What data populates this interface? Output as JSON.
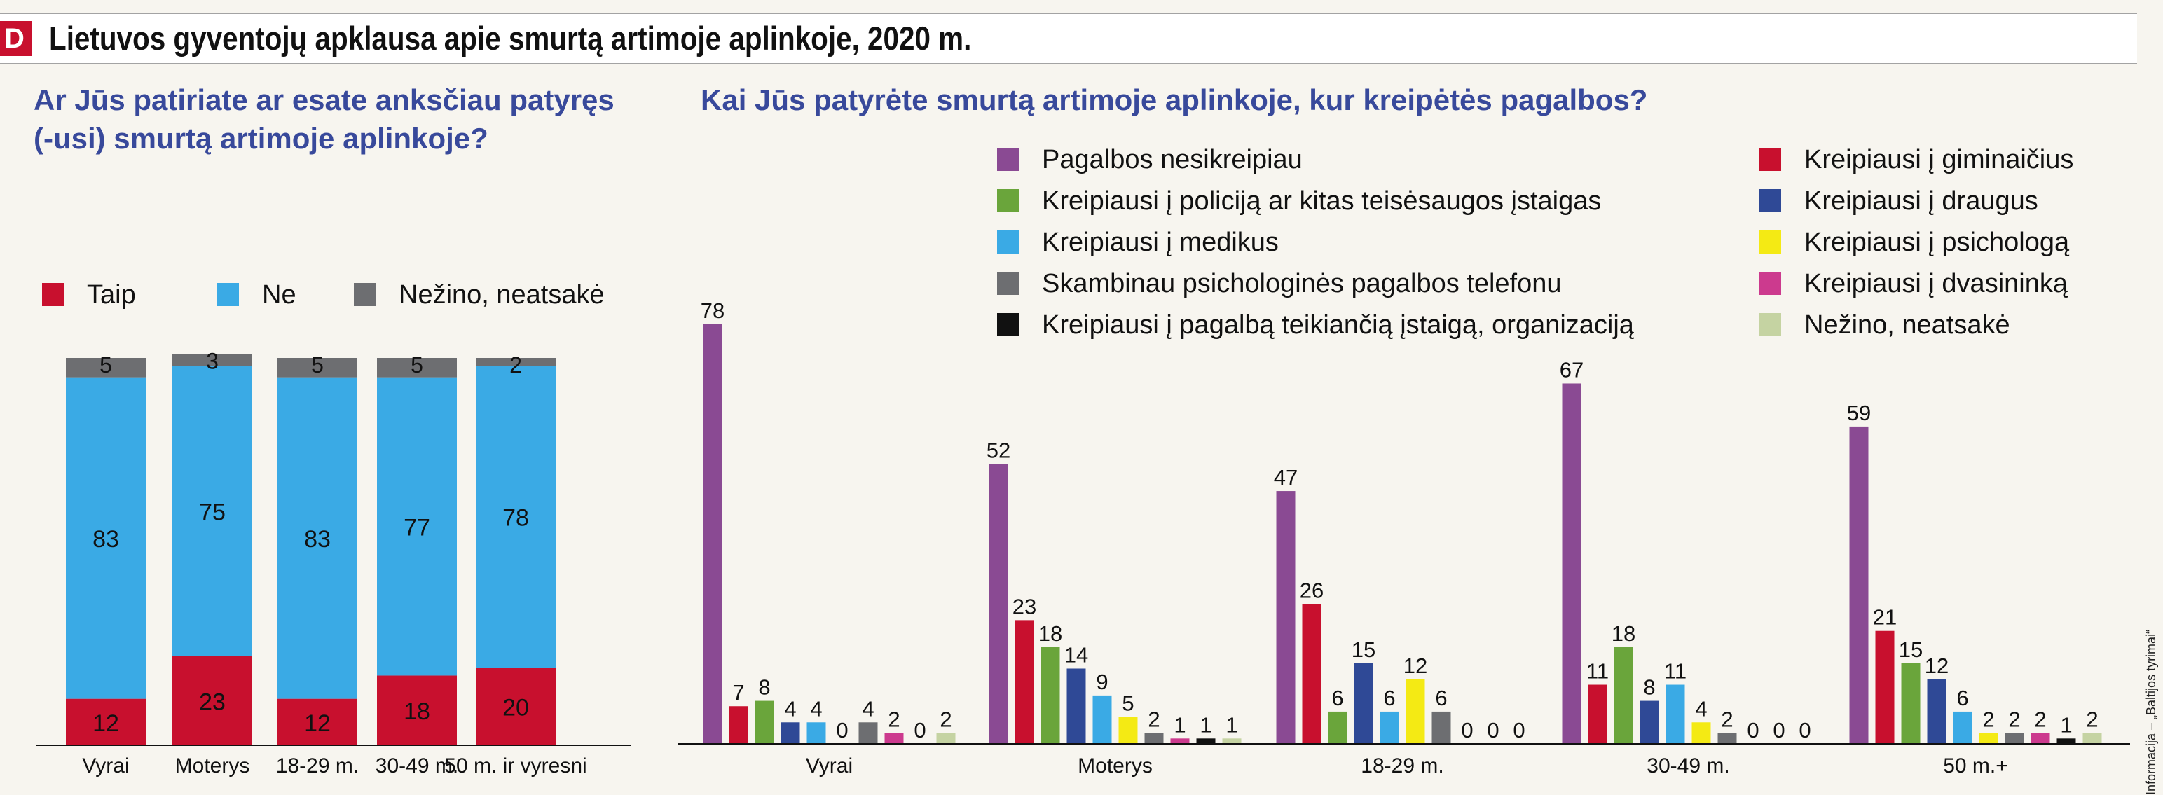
{
  "header": {
    "logo_letter": "D",
    "title": "Lietuvos gyventojų apklausa apie smurtą artimoje aplinkoje, 2020 m."
  },
  "source": "Informacija – „Baltijos tyrimai“",
  "colors": {
    "accent": "#c8102e",
    "title_blue": "#38499b"
  },
  "chart_data": [
    {
      "type": "bar",
      "stacked": true,
      "question": "Ar Jūs patiriate ar esate anksčiau patyręs (-usi) smurtą artimoje aplinkoje?",
      "categories": [
        "Vyrai",
        "Moterys",
        "18-29 m.",
        "30-49 m.",
        "50 m. ir vyresni"
      ],
      "series": [
        {
          "name": "Taip",
          "color": "#c8102e",
          "values": [
            12,
            23,
            12,
            18,
            20
          ]
        },
        {
          "name": "Ne",
          "color": "#3aaae5",
          "values": [
            83,
            75,
            83,
            77,
            78
          ]
        },
        {
          "name": "Nežino, neatsakė",
          "color": "#6d6e71",
          "values": [
            5,
            3,
            5,
            5,
            2
          ]
        }
      ],
      "ylim": [
        0,
        100
      ],
      "legend_position": "top"
    },
    {
      "type": "bar",
      "question": "Kai Jūs patyrėte smurtą artimoje aplinkoje, kur kreipėtės pagalbos?",
      "categories": [
        "Vyrai",
        "Moterys",
        "18-29 m.",
        "30-49 m.",
        "50 m.+"
      ],
      "series": [
        {
          "name": "Pagalbos nesikreipiau",
          "color": "#8a4a93",
          "values": [
            78,
            52,
            47,
            67,
            59
          ]
        },
        {
          "name": "Kreipiausi į giminaičius",
          "color": "#c8102e",
          "values": [
            7,
            23,
            26,
            11,
            21
          ]
        },
        {
          "name": "Kreipiausi į policiją ar kitas teisėsaugos įstaigas",
          "color": "#6aa53b",
          "values": [
            8,
            18,
            6,
            18,
            15
          ]
        },
        {
          "name": "Kreipiausi į draugus",
          "color": "#2f4996",
          "values": [
            4,
            14,
            15,
            8,
            12
          ]
        },
        {
          "name": "Kreipiausi į medikus",
          "color": "#3aaae5",
          "values": [
            4,
            9,
            6,
            11,
            6
          ]
        },
        {
          "name": "Kreipiausi į psichologą",
          "color": "#f4ea14",
          "values": [
            0,
            5,
            12,
            4,
            2
          ]
        },
        {
          "name": "Skambinau psichologinės pagalbos telefonu",
          "color": "#6d6e71",
          "values": [
            4,
            2,
            6,
            2,
            2
          ]
        },
        {
          "name": "Kreipiausi į dvasininką",
          "color": "#cc3a8e",
          "values": [
            2,
            1,
            0,
            0,
            2
          ]
        },
        {
          "name": "Kreipiausi į pagalbą teikiančią įstaigą, organizaciją",
          "color": "#111111",
          "values": [
            0,
            1,
            0,
            0,
            1
          ]
        },
        {
          "name": "Nežino, neatsakė",
          "color": "#c5d3a2",
          "values": [
            2,
            1,
            0,
            0,
            2
          ]
        }
      ],
      "ylim": [
        0,
        78
      ],
      "legend_position": "top-right"
    }
  ]
}
